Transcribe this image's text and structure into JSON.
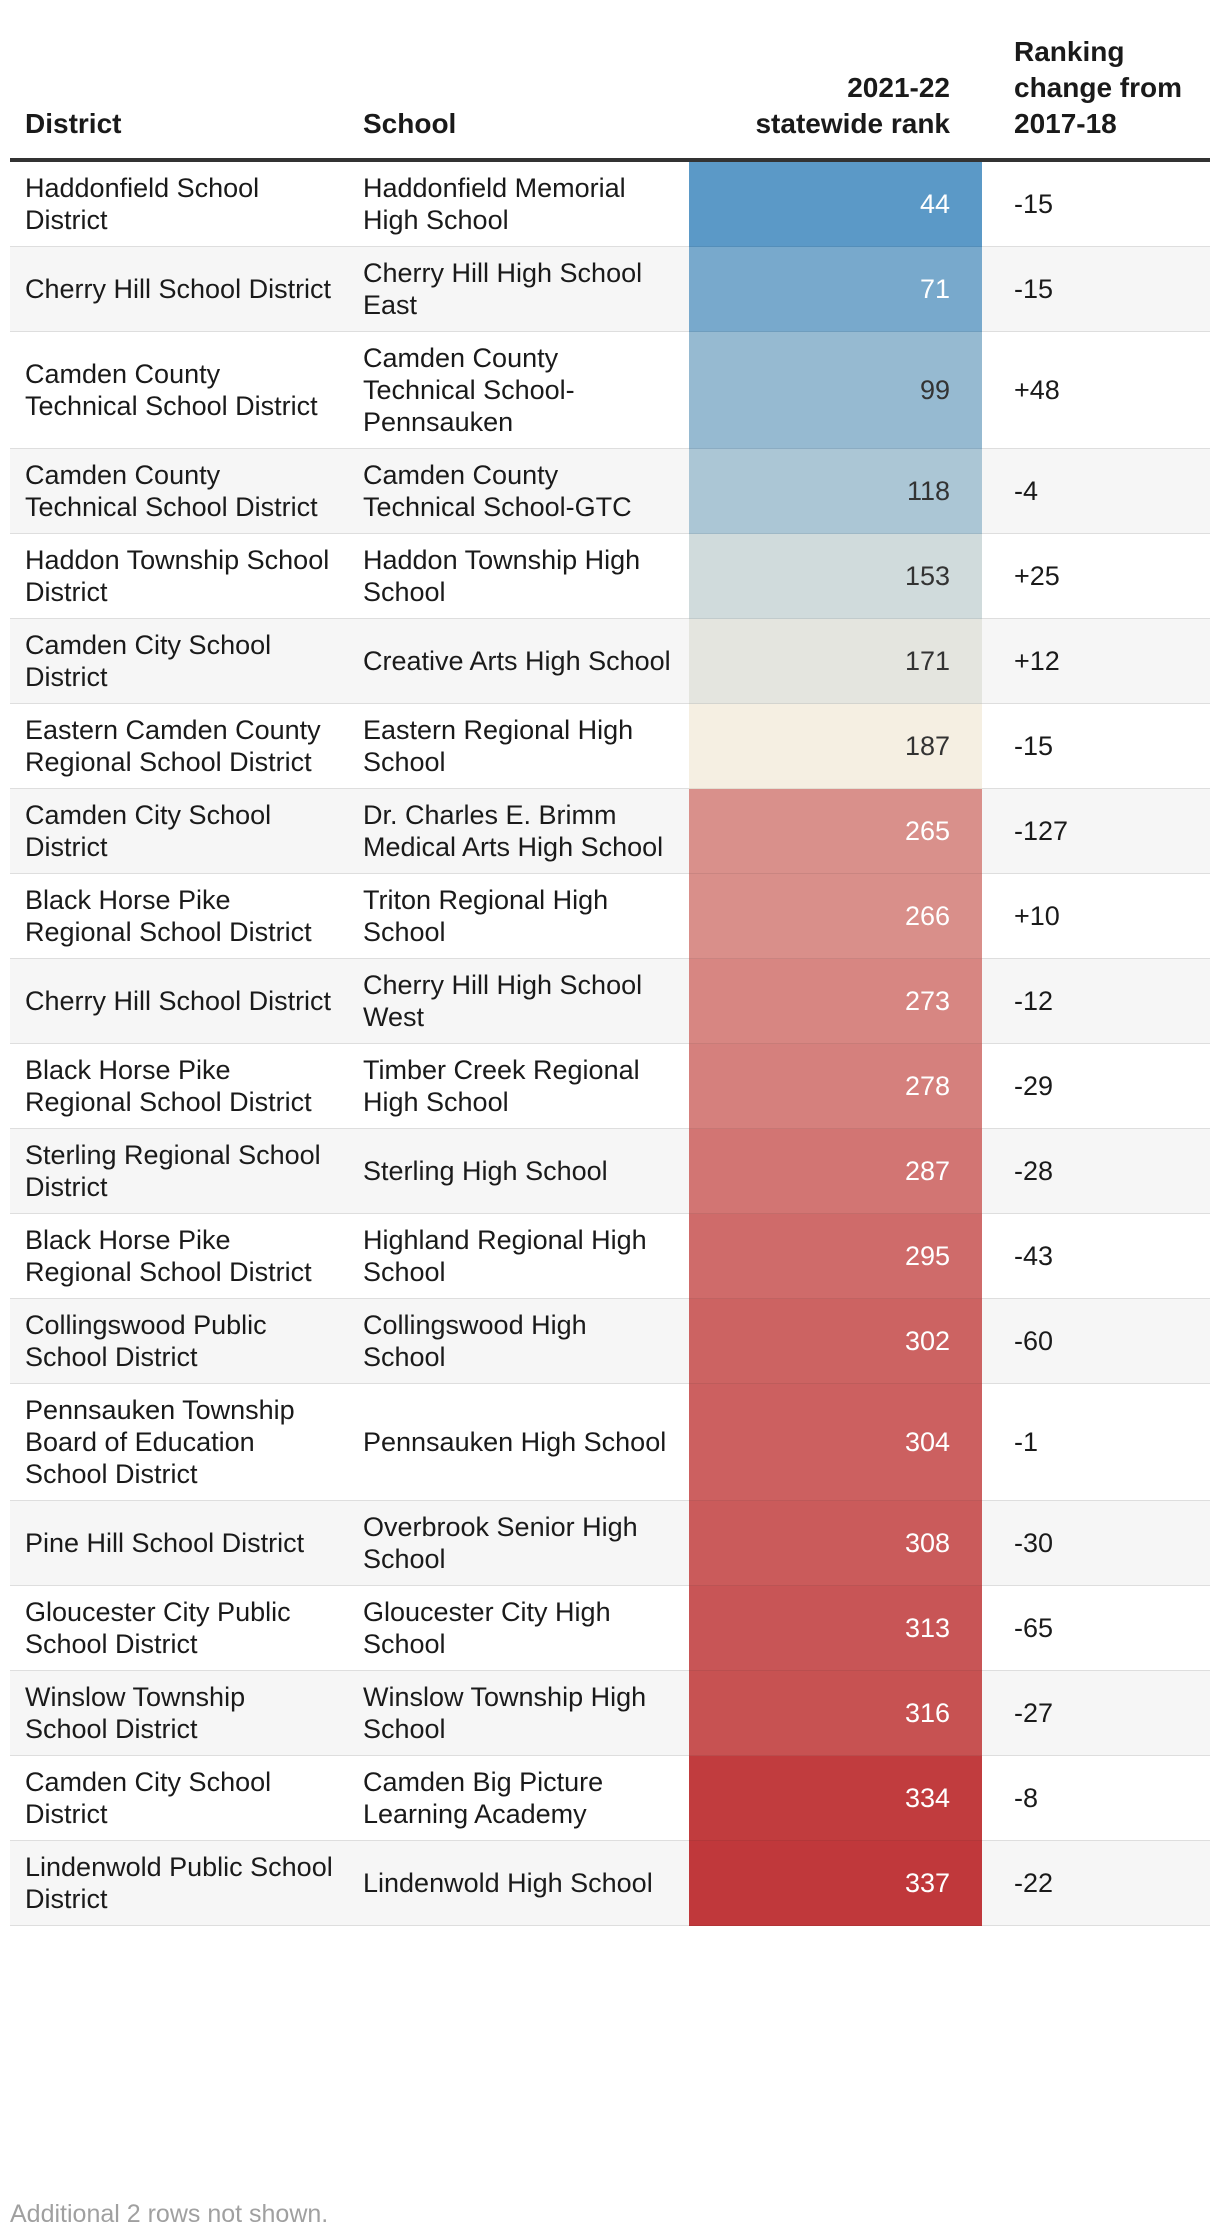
{
  "chart_data": {
    "type": "table",
    "columns": [
      "District",
      "School",
      "2021-22 statewide rank",
      "Ranking change from 2017-18"
    ],
    "header_lines": {
      "rank": [
        "2021-22",
        "statewide rank"
      ],
      "change": [
        "Ranking",
        "change from",
        "2017-18"
      ]
    },
    "rows": [
      {
        "district": "Haddonfield School District",
        "school": "Haddonfield Memorial High School",
        "rank": 44,
        "change": "-15"
      },
      {
        "district": "Cherry Hill School District",
        "school": "Cherry Hill High School East",
        "rank": 71,
        "change": "-15"
      },
      {
        "district": "Camden County Technical School District",
        "school": "Camden County Technical School-Pennsauken",
        "rank": 99,
        "change": "+48"
      },
      {
        "district": "Camden County Technical School District",
        "school": "Camden County Technical School-GTC",
        "rank": 118,
        "change": "-4"
      },
      {
        "district": "Haddon Township School District",
        "school": "Haddon Township High School",
        "rank": 153,
        "change": "+25"
      },
      {
        "district": "Camden City School District",
        "school": "Creative Arts High School",
        "rank": 171,
        "change": "+12"
      },
      {
        "district": "Eastern Camden County Regional School District",
        "school": "Eastern Regional High School",
        "rank": 187,
        "change": "-15"
      },
      {
        "district": "Camden City School District",
        "school": "Dr. Charles E. Brimm Medical Arts High School",
        "rank": 265,
        "change": "-127"
      },
      {
        "district": "Black Horse Pike Regional School District",
        "school": "Triton Regional High School",
        "rank": 266,
        "change": "+10"
      },
      {
        "district": "Cherry Hill School District",
        "school": "Cherry Hill High School West",
        "rank": 273,
        "change": "-12"
      },
      {
        "district": "Black Horse Pike Regional School District",
        "school": "Timber Creek Regional High School",
        "rank": 278,
        "change": "-29"
      },
      {
        "district": "Sterling Regional School District",
        "school": "Sterling High School",
        "rank": 287,
        "change": "-28"
      },
      {
        "district": "Black Horse Pike Regional School District",
        "school": "Highland Regional High School",
        "rank": 295,
        "change": "-43"
      },
      {
        "district": "Collingswood Public School District",
        "school": "Collingswood High School",
        "rank": 302,
        "change": "-60"
      },
      {
        "district": "Pennsauken Township Board of Education School District",
        "school": "Pennsauken High School",
        "rank": 304,
        "change": "-1"
      },
      {
        "district": "Pine Hill School District",
        "school": "Overbrook Senior High School",
        "rank": 308,
        "change": "-30"
      },
      {
        "district": "Gloucester City Public School District",
        "school": "Gloucester City High School",
        "rank": 313,
        "change": "-65"
      },
      {
        "district": "Winslow Township School District",
        "school": "Winslow Township High School",
        "rank": 316,
        "change": "-27"
      },
      {
        "district": "Camden City School District",
        "school": "Camden Big Picture Learning Academy",
        "rank": 334,
        "change": "-8"
      },
      {
        "district": "Lindenwold Public School District",
        "school": "Lindenwold High School",
        "rank": 337,
        "change": "-22"
      }
    ],
    "rank_color_scale": {
      "domain": [
        44,
        187,
        337
      ],
      "colors": [
        "#5b99c7",
        "#f5efe2",
        "#c0383b"
      ]
    },
    "footnote": "Additional 2 rows not shown."
  }
}
